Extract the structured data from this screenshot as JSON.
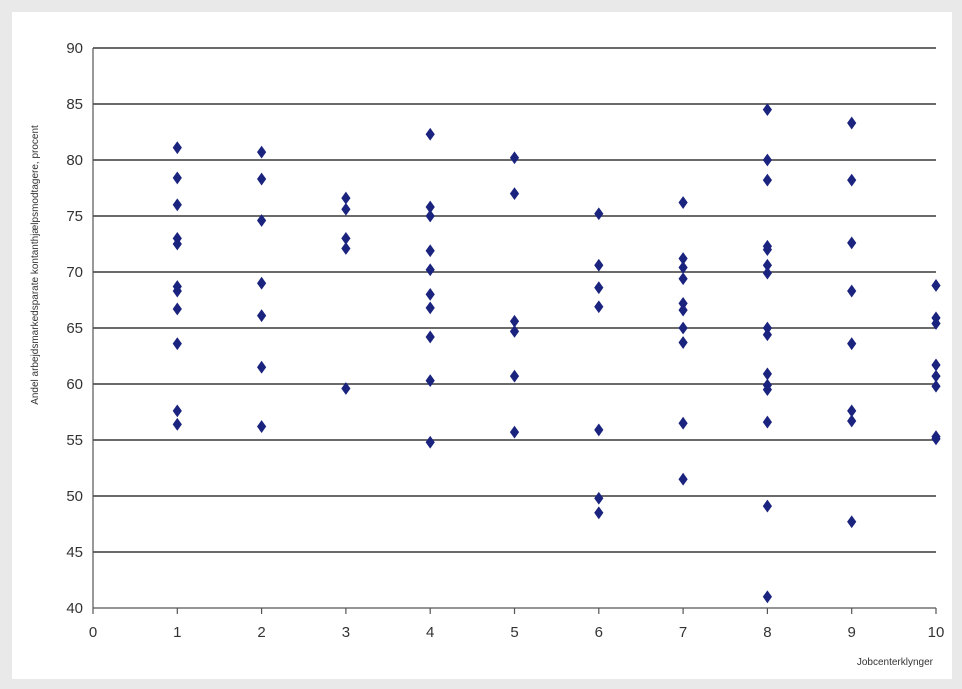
{
  "chart_data": {
    "type": "scatter",
    "title": "",
    "xlabel": "Jobcenterklynger",
    "ylabel": "Andel arbejdsmarkedsparate kontanthjælpsmodtagere, procent",
    "xlim": [
      0,
      10
    ],
    "ylim": [
      40,
      90
    ],
    "xticks": [
      "0",
      "1",
      "2",
      "3",
      "4",
      "5",
      "6",
      "7",
      "8",
      "9",
      "10"
    ],
    "yticks": [
      "40",
      "45",
      "50",
      "55",
      "60",
      "65",
      "70",
      "75",
      "80",
      "85",
      "90"
    ],
    "grid": "horizontal",
    "marker_color": "#1a237e",
    "marker": "diamond",
    "points": [
      {
        "x": 1,
        "y": 81.1
      },
      {
        "x": 1,
        "y": 78.4
      },
      {
        "x": 1,
        "y": 76.0
      },
      {
        "x": 1,
        "y": 73.0
      },
      {
        "x": 1,
        "y": 72.5
      },
      {
        "x": 1,
        "y": 68.7
      },
      {
        "x": 1,
        "y": 68.3
      },
      {
        "x": 1,
        "y": 66.7
      },
      {
        "x": 1,
        "y": 63.6
      },
      {
        "x": 1,
        "y": 57.6
      },
      {
        "x": 1,
        "y": 56.4
      },
      {
        "x": 2,
        "y": 80.7
      },
      {
        "x": 2,
        "y": 78.3
      },
      {
        "x": 2,
        "y": 74.6
      },
      {
        "x": 2,
        "y": 69.0
      },
      {
        "x": 2,
        "y": 66.1
      },
      {
        "x": 2,
        "y": 61.5
      },
      {
        "x": 2,
        "y": 56.2
      },
      {
        "x": 3,
        "y": 76.6
      },
      {
        "x": 3,
        "y": 75.6
      },
      {
        "x": 3,
        "y": 73.0
      },
      {
        "x": 3,
        "y": 72.1
      },
      {
        "x": 3,
        "y": 59.6
      },
      {
        "x": 4,
        "y": 82.3
      },
      {
        "x": 4,
        "y": 75.8
      },
      {
        "x": 4,
        "y": 75.0
      },
      {
        "x": 4,
        "y": 71.9
      },
      {
        "x": 4,
        "y": 70.2
      },
      {
        "x": 4,
        "y": 68.0
      },
      {
        "x": 4,
        "y": 66.8
      },
      {
        "x": 4,
        "y": 64.2
      },
      {
        "x": 4,
        "y": 60.3
      },
      {
        "x": 4,
        "y": 54.8
      },
      {
        "x": 5,
        "y": 80.2
      },
      {
        "x": 5,
        "y": 77.0
      },
      {
        "x": 5,
        "y": 65.6
      },
      {
        "x": 5,
        "y": 64.7
      },
      {
        "x": 5,
        "y": 60.7
      },
      {
        "x": 5,
        "y": 55.7
      },
      {
        "x": 6,
        "y": 75.2
      },
      {
        "x": 6,
        "y": 70.6
      },
      {
        "x": 6,
        "y": 68.6
      },
      {
        "x": 6,
        "y": 66.9
      },
      {
        "x": 6,
        "y": 55.9
      },
      {
        "x": 6,
        "y": 49.8
      },
      {
        "x": 6,
        "y": 48.5
      },
      {
        "x": 7,
        "y": 76.2
      },
      {
        "x": 7,
        "y": 71.2
      },
      {
        "x": 7,
        "y": 70.4
      },
      {
        "x": 7,
        "y": 69.4
      },
      {
        "x": 7,
        "y": 67.2
      },
      {
        "x": 7,
        "y": 66.6
      },
      {
        "x": 7,
        "y": 65.0
      },
      {
        "x": 7,
        "y": 63.7
      },
      {
        "x": 7,
        "y": 56.5
      },
      {
        "x": 7,
        "y": 51.5
      },
      {
        "x": 8,
        "y": 84.5
      },
      {
        "x": 8,
        "y": 80.0
      },
      {
        "x": 8,
        "y": 78.2
      },
      {
        "x": 8,
        "y": 72.3
      },
      {
        "x": 8,
        "y": 72.0
      },
      {
        "x": 8,
        "y": 70.6
      },
      {
        "x": 8,
        "y": 69.9
      },
      {
        "x": 8,
        "y": 65.0
      },
      {
        "x": 8,
        "y": 64.4
      },
      {
        "x": 8,
        "y": 60.9
      },
      {
        "x": 8,
        "y": 59.9
      },
      {
        "x": 8,
        "y": 59.5
      },
      {
        "x": 8,
        "y": 56.6
      },
      {
        "x": 8,
        "y": 49.1
      },
      {
        "x": 8,
        "y": 41.0
      },
      {
        "x": 9,
        "y": 83.3
      },
      {
        "x": 9,
        "y": 78.2
      },
      {
        "x": 9,
        "y": 72.6
      },
      {
        "x": 9,
        "y": 68.3
      },
      {
        "x": 9,
        "y": 63.6
      },
      {
        "x": 9,
        "y": 57.6
      },
      {
        "x": 9,
        "y": 56.7
      },
      {
        "x": 9,
        "y": 47.7
      },
      {
        "x": 10,
        "y": 68.8
      },
      {
        "x": 10,
        "y": 65.9
      },
      {
        "x": 10,
        "y": 65.4
      },
      {
        "x": 10,
        "y": 61.7
      },
      {
        "x": 10,
        "y": 60.7
      },
      {
        "x": 10,
        "y": 59.8
      },
      {
        "x": 10,
        "y": 55.3
      },
      {
        "x": 10,
        "y": 55.1
      }
    ]
  }
}
